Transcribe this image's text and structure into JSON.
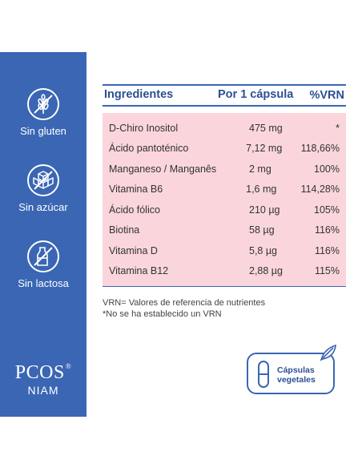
{
  "sidebar": {
    "badges": [
      {
        "label": "Sin gluten",
        "icon": "wheat-crossed-icon"
      },
      {
        "label": "Sin azúcar",
        "icon": "sugar-cubes-crossed-icon"
      },
      {
        "label": "Sin lactosa",
        "icon": "milk-crossed-icon"
      }
    ],
    "brand": {
      "name": "PCOS",
      "mark": "®",
      "sub": "NIAM"
    }
  },
  "table": {
    "headers": {
      "ingredient": "Ingredientes",
      "amount": "Por 1 cápsula",
      "vrn": "%VRN"
    },
    "rows": [
      {
        "ingredient": "D-Chiro Inositol",
        "amount": "475 mg",
        "vrn": "*"
      },
      {
        "ingredient": "Ácido pantoténico",
        "amount": "7,12 mg",
        "vrn": "118,66%"
      },
      {
        "ingredient": "Manganeso / Manganês",
        "amount": "2 mg",
        "vrn": "100%"
      },
      {
        "ingredient": "Vitamina B6",
        "amount": "1,6 mg",
        "vrn": "114,28%"
      },
      {
        "ingredient": "Ácido fólico",
        "amount": "210 µg",
        "vrn": "105%"
      },
      {
        "ingredient": "Biotina",
        "amount": "58 µg",
        "vrn": "116%"
      },
      {
        "ingredient": "Vitamina D",
        "amount": "5,8 µg",
        "vrn": "116%"
      },
      {
        "ingredient": "Vitamina B12",
        "amount": "2,88 µg",
        "vrn": "115%"
      }
    ]
  },
  "notes": {
    "line1": "VRN= Valores de referencia de nutrientes",
    "line2": "*No se ha establecido un VRN"
  },
  "capsule": {
    "line1": "Cápsulas",
    "line2": "vegetales",
    "icon": "capsule-icon",
    "leaf_icon": "leaf-icon"
  },
  "colors": {
    "primary": "#3a66b4",
    "table_bg": "#fad6dc",
    "header_text": "#2c4f95"
  }
}
